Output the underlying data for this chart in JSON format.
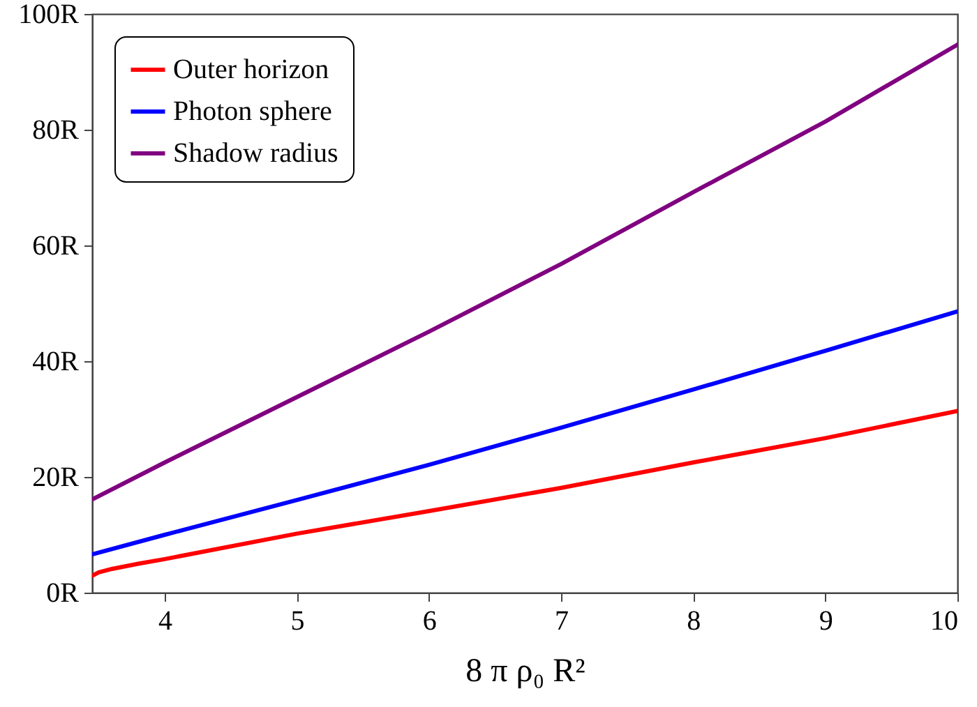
{
  "chart_data": {
    "type": "line",
    "xlabel": "8 π ρ₀ R²",
    "xlim": [
      3.45,
      10
    ],
    "xticks": [
      4,
      5,
      6,
      7,
      8,
      9,
      10
    ],
    "ylim": [
      0,
      100
    ],
    "yticks": [
      {
        "value": 0,
        "label": "0R"
      },
      {
        "value": 20,
        "label": "20R"
      },
      {
        "value": 40,
        "label": "40R"
      },
      {
        "value": 60,
        "label": "60R"
      },
      {
        "value": 80,
        "label": "80R"
      },
      {
        "value": 100,
        "label": "100R"
      }
    ],
    "grid": false,
    "legend": "top left",
    "line_style": "solid",
    "series": [
      {
        "name": "Outer horizon",
        "color": "#ff0000",
        "x": [
          3.45,
          3.5,
          3.6,
          3.8,
          4,
          5,
          6,
          7,
          8,
          9,
          10
        ],
        "values": [
          2.9,
          3.5,
          4.1,
          5.0,
          5.8,
          10.2,
          14.1,
          18.1,
          22.5,
          26.7,
          31.4
        ]
      },
      {
        "name": "Photon sphere",
        "color": "#0000ff",
        "x": [
          3.45,
          4,
          5,
          6,
          7,
          8,
          9,
          10
        ],
        "values": [
          6.6,
          10.0,
          16.0,
          22.1,
          28.5,
          35.1,
          41.8,
          48.6
        ]
      },
      {
        "name": "Shadow radius",
        "color": "#800080",
        "x": [
          3.45,
          4,
          5,
          6,
          7,
          8,
          9,
          10
        ],
        "values": [
          16.1,
          22.5,
          33.8,
          45.1,
          56.8,
          69.2,
          81.4,
          94.7
        ]
      }
    ]
  }
}
